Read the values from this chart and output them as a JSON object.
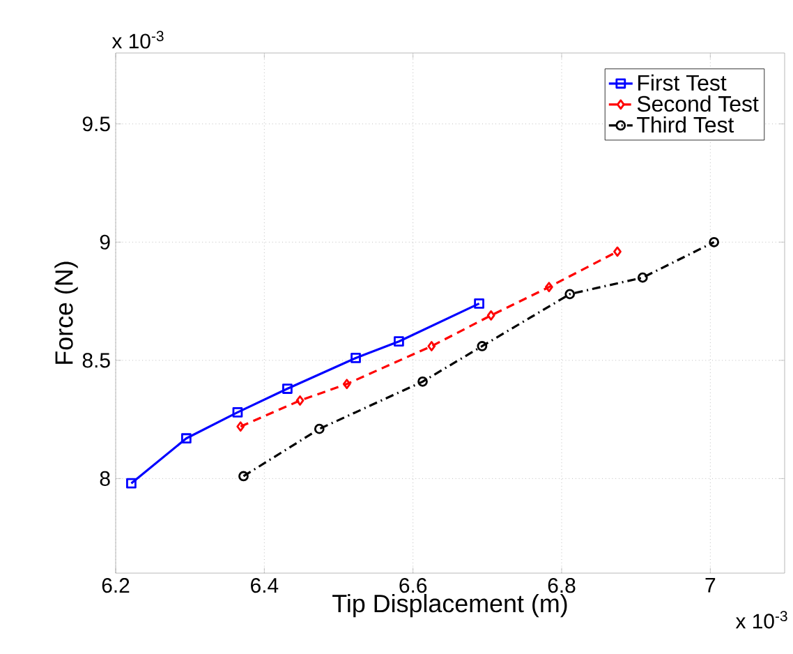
{
  "chart_data": {
    "type": "line",
    "xlabel": "Tip Displacement (m)",
    "ylabel": "Force (N)",
    "xlim": [
      6.2,
      7.1
    ],
    "xticks": [
      6.2,
      6.4,
      6.6,
      6.8,
      7
    ],
    "ylim": [
      7.6,
      9.8
    ],
    "yticks": [
      8,
      8.5,
      9,
      9.5
    ],
    "grid": true,
    "legend": "top right",
    "annotations": [
      "x 10$^{-3}$",
      "x 10$^{-3}$"
    ],
    "series": [
      {
        "name": "First Test",
        "color": "#0000ff",
        "marker": "square",
        "line_style": "solid",
        "x": [
          6.221,
          6.295,
          6.364,
          6.431,
          6.523,
          6.581,
          6.689
        ],
        "values": [
          7.98,
          8.17,
          8.28,
          8.38,
          8.51,
          8.58,
          8.74
        ]
      },
      {
        "name": "Second Test",
        "color": "#ff0000",
        "marker": "diamond",
        "line_style": "dashed",
        "x": [
          6.368,
          6.448,
          6.511,
          6.625,
          6.705,
          6.783,
          6.875
        ],
        "values": [
          8.22,
          8.33,
          8.4,
          8.56,
          8.69,
          8.81,
          8.96
        ]
      },
      {
        "name": "Third Test",
        "color": "#000000",
        "marker": "circle",
        "line_style": "dashdot",
        "x": [
          6.372,
          6.474,
          6.613,
          6.693,
          6.811,
          6.909,
          7.005
        ],
        "values": [
          8.01,
          8.21,
          8.41,
          8.56,
          8.78,
          8.85,
          9.0
        ]
      }
    ]
  }
}
